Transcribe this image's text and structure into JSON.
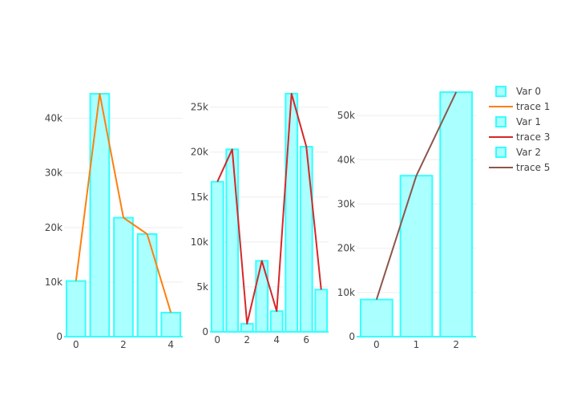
{
  "chart_data": [
    {
      "type": "bar",
      "x": [
        0,
        1,
        2,
        3,
        4
      ],
      "series": [
        {
          "name": "Var 0",
          "kind": "bar",
          "values": [
            10200,
            44500,
            21800,
            18800,
            4400
          ]
        },
        {
          "name": "trace 1",
          "kind": "line",
          "values": [
            10200,
            44500,
            21800,
            18800,
            4400
          ]
        }
      ],
      "xlim": [
        -0.5,
        4.5
      ],
      "ylim": [
        0,
        47000
      ],
      "xticks": [
        0,
        2,
        4
      ],
      "yticks": [
        0,
        10000,
        20000,
        30000,
        40000
      ],
      "ytick_labels": [
        "0",
        "10k",
        "20k",
        "30k",
        "40k"
      ],
      "grid": true
    },
    {
      "type": "bar",
      "x": [
        0,
        1,
        2,
        3,
        4,
        5,
        6,
        7
      ],
      "series": [
        {
          "name": "Var 1",
          "kind": "bar",
          "values": [
            16700,
            20300,
            900,
            7900,
            2300,
            26500,
            20600,
            4700
          ]
        },
        {
          "name": "trace 3",
          "kind": "line",
          "values": [
            16700,
            20300,
            900,
            7900,
            2300,
            26500,
            20600,
            4700
          ]
        }
      ],
      "xlim": [
        -0.5,
        7.5
      ],
      "ylim": [
        0,
        28000
      ],
      "xticks": [
        0,
        2,
        4,
        6
      ],
      "yticks": [
        0,
        5000,
        10000,
        15000,
        20000,
        25000
      ],
      "ytick_labels": [
        "0",
        "5k",
        "10k",
        "15k",
        "20k",
        "25k"
      ],
      "grid": true
    },
    {
      "type": "bar",
      "x": [
        0,
        1,
        2
      ],
      "series": [
        {
          "name": "Var 2",
          "kind": "bar",
          "values": [
            8400,
            36400,
            55300
          ]
        },
        {
          "name": "trace 5",
          "kind": "line",
          "values": [
            8400,
            36400,
            55300
          ]
        }
      ],
      "xlim": [
        -0.5,
        2.5
      ],
      "ylim": [
        0,
        58000
      ],
      "xticks": [
        0,
        1,
        2
      ],
      "yticks": [
        0,
        10000,
        20000,
        30000,
        40000,
        50000
      ],
      "ytick_labels": [
        "0",
        "10k",
        "20k",
        "30k",
        "40k",
        "50k"
      ],
      "grid": true
    }
  ],
  "legend": {
    "placement": "right",
    "items": [
      {
        "label": "Var 0",
        "kind": "bar"
      },
      {
        "label": "trace 1",
        "kind": "line",
        "color": "#ff7f0e"
      },
      {
        "label": "Var 1",
        "kind": "bar"
      },
      {
        "label": "trace 3",
        "kind": "line",
        "color": "#d62728"
      },
      {
        "label": "Var 2",
        "kind": "bar"
      },
      {
        "label": "trace 5",
        "kind": "line",
        "color": "#8c564b"
      }
    ]
  },
  "colors": {
    "bar_fill": "#aaffff",
    "bar_stroke": "#33ffff",
    "axis_line": "#33ffff",
    "gridline": "#eeeeee",
    "text": "#444444",
    "trace_1": "#ff7f0e",
    "trace_3": "#d62728",
    "trace_5": "#8c564b"
  }
}
